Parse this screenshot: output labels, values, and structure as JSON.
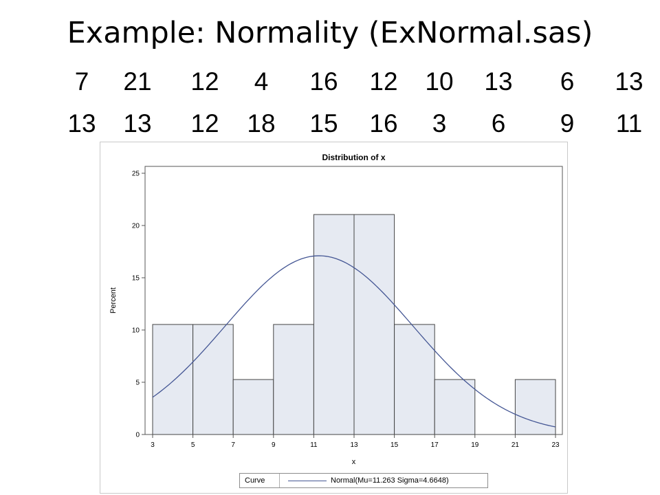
{
  "slide": {
    "title": "Example: Normality (ExNormal.sas)"
  },
  "data_rows": [
    [
      "7",
      "21",
      "12",
      "4",
      "16",
      "12",
      "10",
      "13",
      "6",
      "13"
    ],
    [
      "13",
      "13",
      "12",
      "18",
      "15",
      "16",
      "3",
      "6",
      "9",
      "11"
    ]
  ],
  "chart_data": {
    "type": "bar",
    "subtype": "histogram",
    "title": "Distribution of x",
    "xlabel": "x",
    "ylabel": "Percent",
    "xlim": [
      3,
      23
    ],
    "ylim": [
      0,
      25
    ],
    "x_ticks": [
      3,
      5,
      7,
      9,
      11,
      13,
      15,
      17,
      19,
      21,
      23
    ],
    "y_ticks": [
      0,
      5,
      10,
      15,
      20,
      25
    ],
    "bins": [
      {
        "x0": 3,
        "x1": 5,
        "value": 10.53
      },
      {
        "x0": 5,
        "x1": 7,
        "value": 10.53
      },
      {
        "x0": 7,
        "x1": 9,
        "value": 5.26
      },
      {
        "x0": 9,
        "x1": 11,
        "value": 10.53
      },
      {
        "x0": 11,
        "x1": 13,
        "value": 21.05
      },
      {
        "x0": 13,
        "x1": 15,
        "value": 21.05
      },
      {
        "x0": 15,
        "x1": 17,
        "value": 10.53
      },
      {
        "x0": 17,
        "x1": 19,
        "value": 5.26
      },
      {
        "x0": 19,
        "x1": 21,
        "value": 0
      },
      {
        "x0": 21,
        "x1": 23,
        "value": 5.26
      }
    ],
    "curve": {
      "type": "normal",
      "mu": 11.263,
      "sigma": 4.6648,
      "bin_width": 2
    },
    "legend": {
      "placement": "bottom",
      "header": "Curve",
      "entries": [
        {
          "label": "Normal(Mu=11.263 Sigma=4.6648)",
          "color": "#445694"
        }
      ]
    },
    "grid": false,
    "colors": {
      "bar_fill": "#e6eaf2",
      "bar_stroke": "#444444",
      "curve": "#445694",
      "axis": "#555555"
    }
  }
}
